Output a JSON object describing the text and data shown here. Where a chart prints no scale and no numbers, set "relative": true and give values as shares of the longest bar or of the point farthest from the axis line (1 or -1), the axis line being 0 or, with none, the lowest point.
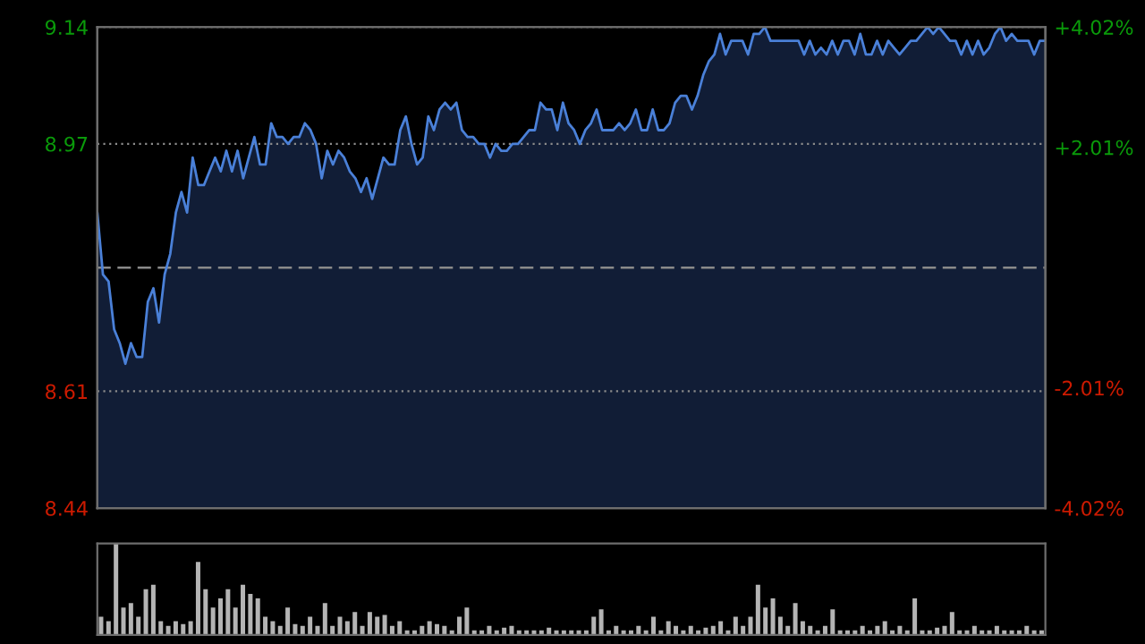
{
  "chart_data": [
    {
      "type": "area",
      "categories": [
        null,
        null,
        null,
        null,
        null,
        null,
        null,
        null,
        null,
        null,
        null,
        null,
        null,
        null,
        null,
        null,
        null,
        null,
        null,
        null,
        null,
        null,
        null,
        null,
        null,
        null,
        null,
        null,
        null,
        null,
        null,
        null,
        null,
        null,
        null,
        null,
        null,
        null,
        null,
        null,
        null,
        null,
        null,
        null,
        null,
        null,
        null,
        null,
        null,
        null,
        null,
        null,
        null,
        null,
        null,
        null,
        null,
        null,
        null,
        null,
        null,
        null,
        null,
        null,
        null,
        null,
        null,
        null,
        null,
        null,
        null,
        null,
        null,
        null,
        null,
        null,
        null,
        null,
        null,
        null,
        null,
        null,
        null,
        null,
        null,
        null,
        null,
        null,
        null,
        null,
        null,
        null,
        null,
        null,
        null,
        null,
        null,
        null,
        null,
        null,
        null,
        null,
        null,
        null,
        null,
        null,
        null,
        null,
        null,
        null,
        null,
        null,
        null,
        null,
        null,
        null,
        null,
        null,
        null,
        null,
        null,
        null,
        null,
        null,
        null,
        null,
        null,
        null,
        null,
        null,
        null,
        null,
        null,
        null,
        null,
        null,
        null,
        null,
        null,
        null,
        null,
        null,
        null,
        null,
        null,
        null,
        null,
        null,
        null,
        null,
        null,
        null,
        null,
        null,
        null,
        null,
        null,
        null,
        null,
        null,
        null,
        null,
        null,
        null,
        null,
        null,
        null,
        null,
        null,
        null
      ],
      "series": [
        {
          "color": "#4a80d8",
          "values": [
            8.87,
            8.78,
            8.77,
            8.7,
            8.68,
            8.65,
            8.68,
            8.66,
            8.66,
            8.74,
            8.76,
            8.71,
            8.78,
            8.81,
            8.87,
            8.9,
            8.87,
            8.95,
            8.91,
            8.91,
            8.93,
            8.95,
            8.93,
            8.96,
            8.93,
            8.96,
            8.92,
            8.95,
            8.98,
            8.94,
            8.94,
            9.0,
            8.98,
            8.98,
            8.97,
            8.98,
            8.98,
            9.0,
            8.99,
            8.97,
            8.92,
            8.96,
            8.94,
            8.96,
            8.95,
            8.93,
            8.92,
            8.9,
            8.92,
            8.89,
            8.92,
            8.95,
            8.94,
            8.94,
            8.99,
            9.01,
            8.97,
            8.94,
            8.95,
            9.01,
            8.99,
            9.02,
            9.03,
            9.02,
            9.03,
            8.99,
            8.98,
            8.98,
            8.97,
            8.97,
            8.95,
            8.97,
            8.96,
            8.96,
            8.97,
            8.97,
            8.98,
            8.99,
            8.99,
            9.03,
            9.02,
            9.02,
            8.99,
            9.03,
            9.0,
            8.99,
            8.97,
            8.99,
            9.0,
            9.02,
            8.99,
            8.99,
            8.99,
            9.0,
            8.99,
            9.0,
            9.02,
            8.99,
            8.99,
            9.02,
            8.99,
            8.99,
            9.0,
            9.03,
            9.04,
            9.04,
            9.02,
            9.04,
            9.07,
            9.09,
            9.1,
            9.13,
            9.1,
            9.12,
            9.12,
            9.12,
            9.1,
            9.13,
            9.13,
            9.14,
            9.12,
            9.12,
            9.12,
            9.12,
            9.12,
            9.12,
            9.1,
            9.12,
            9.1,
            9.11,
            9.1,
            9.12,
            9.1,
            9.12,
            9.12,
            9.1,
            9.13,
            9.1,
            9.1,
            9.12,
            9.1,
            9.12,
            9.11,
            9.1,
            9.11,
            9.12,
            9.12,
            9.13,
            9.14,
            9.13,
            9.14,
            9.13,
            9.12,
            9.12,
            9.1,
            9.12,
            9.1,
            9.12,
            9.1,
            9.11,
            9.13,
            9.14,
            9.12,
            9.13,
            9.12,
            9.12,
            9.12,
            9.1,
            9.12,
            9.12
          ]
        }
      ],
      "ylim": [
        8.44,
        9.14
      ],
      "yticks": [
        8.44,
        8.61,
        8.97,
        9.14
      ],
      "y2lim": [
        -4.02,
        4.02
      ],
      "y2ticks": [
        {
          "value": -4.02,
          "label": "-4.02%"
        },
        {
          "value": -2.01,
          "label": "-2.01%"
        },
        {
          "value": 2.01,
          "label": "+2.01%"
        },
        {
          "value": 4.02,
          "label": "+4.02%"
        }
      ],
      "ref_lines": [
        {
          "axis": "y",
          "value": 8.79,
          "label": null,
          "line_style": "dashed"
        }
      ],
      "tick_labels": "y",
      "grid": "y",
      "line_style": "solid"
    },
    {
      "type": "bar",
      "relative": true,
      "color": "#b4b4b4",
      "categories": [
        null,
        null,
        null,
        null,
        null,
        null,
        null,
        null,
        null,
        null,
        null,
        null,
        null,
        null,
        null,
        null,
        null,
        null,
        null,
        null,
        null,
        null,
        null,
        null,
        null,
        null,
        null,
        null,
        null,
        null,
        null,
        null,
        null,
        null,
        null,
        null,
        null,
        null,
        null,
        null,
        null,
        null,
        null,
        null,
        null,
        null,
        null,
        null,
        null,
        null,
        null,
        null,
        null,
        null,
        null,
        null,
        null,
        null,
        null,
        null,
        null,
        null,
        null,
        null,
        null,
        null,
        null,
        null,
        null,
        null,
        null,
        null,
        null,
        null,
        null,
        null,
        null,
        null,
        null,
        null,
        null,
        null,
        null,
        null,
        null,
        null,
        null,
        null,
        null,
        null,
        null,
        null,
        null,
        null,
        null,
        null,
        null,
        null,
        null,
        null,
        null,
        null,
        null,
        null,
        null,
        null,
        null,
        null,
        null,
        null,
        null,
        null,
        null,
        null,
        null,
        null,
        null,
        null,
        null,
        null,
        null,
        null,
        null,
        null,
        null,
        null,
        null
      ],
      "values": [
        0.2,
        0.15,
        1.0,
        0.3,
        0.35,
        0.2,
        0.5,
        0.55,
        0.15,
        0.1,
        0.15,
        0.12,
        0.15,
        0.8,
        0.5,
        0.3,
        0.4,
        0.5,
        0.3,
        0.55,
        0.45,
        0.4,
        0.2,
        0.15,
        0.1,
        0.3,
        0.12,
        0.1,
        0.2,
        0.1,
        0.35,
        0.1,
        0.2,
        0.15,
        0.25,
        0.1,
        0.25,
        0.2,
        0.22,
        0.1,
        0.15,
        0.05,
        0.05,
        0.1,
        0.15,
        0.12,
        0.1,
        0.05,
        0.2,
        0.3,
        0.05,
        0.05,
        0.1,
        0.05,
        0.08,
        0.1,
        0.05,
        0.05,
        0.05,
        0.05,
        0.08,
        0.05,
        0.05,
        0.05,
        0.05,
        0.05,
        0.2,
        0.28,
        0.05,
        0.1,
        0.05,
        0.05,
        0.1,
        0.05,
        0.2,
        0.05,
        0.15,
        0.1,
        0.05,
        0.1,
        0.05,
        0.08,
        0.1,
        0.15,
        0.05,
        0.2,
        0.1,
        0.2,
        0.55,
        0.3,
        0.4,
        0.2,
        0.1,
        0.35,
        0.15,
        0.1,
        0.05,
        0.1,
        0.28,
        0.05,
        0.05,
        0.05,
        0.1,
        0.05,
        0.1,
        0.15,
        0.05,
        0.1,
        0.05,
        0.4,
        0.05,
        0.05,
        0.08,
        0.1,
        0.25,
        0.05,
        0.05,
        0.1,
        0.05,
        0.05,
        0.1,
        0.05,
        0.05,
        0.05,
        0.1,
        0.05,
        0.05
      ]
    }
  ]
}
